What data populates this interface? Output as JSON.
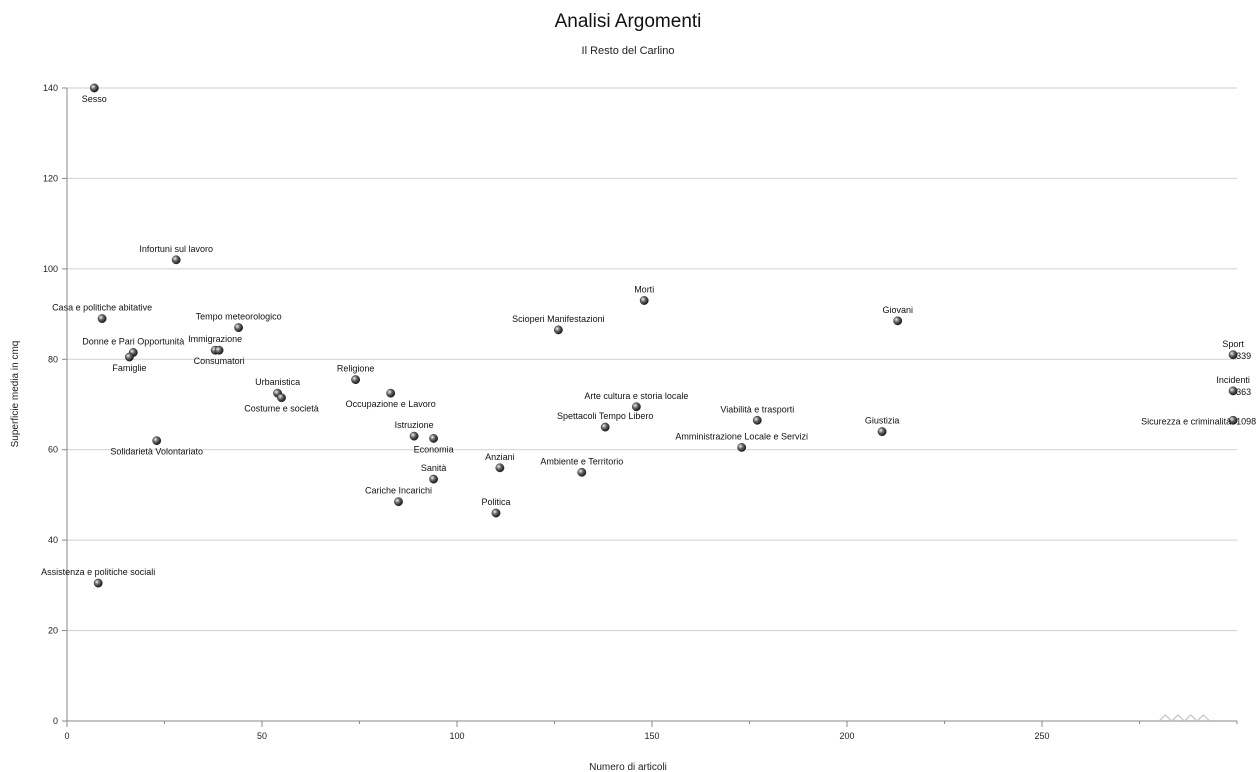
{
  "chart_data": {
    "type": "scatter",
    "title": "Analisi Argomenti",
    "subtitle": "Il Resto del Carlino",
    "xlabel": "Numero di articoli",
    "ylabel": "Superficie media in cmq",
    "xlim": [
      0,
      300
    ],
    "ylim": [
      0,
      140
    ],
    "xticks": [
      0,
      50,
      100,
      150,
      200,
      250
    ],
    "yticks": [
      0,
      20,
      40,
      60,
      80,
      100,
      120,
      140
    ],
    "grid": "horizontal",
    "legend": "none",
    "axis_break": "x-axis after 250",
    "points": [
      {
        "label": "Sesso",
        "x": 7,
        "y": 140,
        "label_pos": "below"
      },
      {
        "label": "Infortuni sul lavoro",
        "x": 28,
        "y": 102,
        "label_pos": "above"
      },
      {
        "label": "Casa e politiche abitative",
        "x": 9,
        "y": 89,
        "label_pos": "above"
      },
      {
        "label": "Tempo meteorologico",
        "x": 44,
        "y": 87,
        "label_pos": "above"
      },
      {
        "label": "Donne e Pari Opportunità",
        "x": 17,
        "y": 81.5,
        "label_pos": "above"
      },
      {
        "label": "Famiglie",
        "x": 16,
        "y": 80.5,
        "label_pos": "below"
      },
      {
        "label": "Immigrazione",
        "x": 38,
        "y": 82,
        "label_pos": "above"
      },
      {
        "label": "Consumatori",
        "x": 39,
        "y": 82,
        "label_pos": "below"
      },
      {
        "label": "Urbanistica",
        "x": 54,
        "y": 72.5,
        "label_pos": "above"
      },
      {
        "label": "Costume e società",
        "x": 55,
        "y": 71.5,
        "label_pos": "below"
      },
      {
        "label": "Religione",
        "x": 74,
        "y": 75.5,
        "label_pos": "above"
      },
      {
        "label": "Occupazione e Lavoro",
        "x": 83,
        "y": 72.5,
        "label_pos": "below"
      },
      {
        "label": "Solidarietà Volontariato",
        "x": 23,
        "y": 62,
        "label_pos": "below"
      },
      {
        "label": "Istruzione",
        "x": 89,
        "y": 63,
        "label_pos": "above"
      },
      {
        "label": "Economia",
        "x": 94,
        "y": 62.5,
        "label_pos": "below"
      },
      {
        "label": "Sanità",
        "x": 94,
        "y": 53.5,
        "label_pos": "above"
      },
      {
        "label": "Cariche Incarichi",
        "x": 85,
        "y": 48.5,
        "label_pos": "above"
      },
      {
        "label": "Anziani",
        "x": 111,
        "y": 56,
        "label_pos": "above"
      },
      {
        "label": "Politica",
        "x": 110,
        "y": 46,
        "label_pos": "above"
      },
      {
        "label": "Assistenza e politiche sociali",
        "x": 8,
        "y": 30.5,
        "label_pos": "above"
      },
      {
        "label": "Morti",
        "x": 148,
        "y": 93,
        "label_pos": "above"
      },
      {
        "label": "Scioperi Manifestazioni",
        "x": 126,
        "y": 86.5,
        "label_pos": "above"
      },
      {
        "label": "Arte cultura e storia locale",
        "x": 146,
        "y": 69.5,
        "label_pos": "above"
      },
      {
        "label": "Spettacoli Tempo Libero",
        "x": 138,
        "y": 65,
        "label_pos": "above"
      },
      {
        "label": "Ambiente e Territorio",
        "x": 132,
        "y": 55,
        "label_pos": "above"
      },
      {
        "label": "Amministrazione Locale e Servizi",
        "x": 173,
        "y": 60.5,
        "label_pos": "above"
      },
      {
        "label": "Viabilità e trasporti",
        "x": 177,
        "y": 66.5,
        "label_pos": "above"
      },
      {
        "label": "Giovani",
        "x": 213,
        "y": 88.5,
        "label_pos": "above"
      },
      {
        "label": "Giustizia",
        "x": 209,
        "y": 64,
        "label_pos": "above"
      },
      {
        "label": "Sport",
        "x": 299,
        "y": 81,
        "value_label": "339",
        "label_pos": "above"
      },
      {
        "label": "Incidenti",
        "x": 299,
        "y": 73,
        "value_label": "363",
        "label_pos": "above"
      },
      {
        "label": "Sicurezza e criminalità",
        "x": 299,
        "y": 66.5,
        "value_label": "1098",
        "label_pos": "left"
      }
    ],
    "colors": {
      "marker": "#3a3a3a",
      "marker_highlight": "#f2f2f2",
      "grid": "#cfcfcf",
      "axis": "#8a8a8a"
    }
  }
}
